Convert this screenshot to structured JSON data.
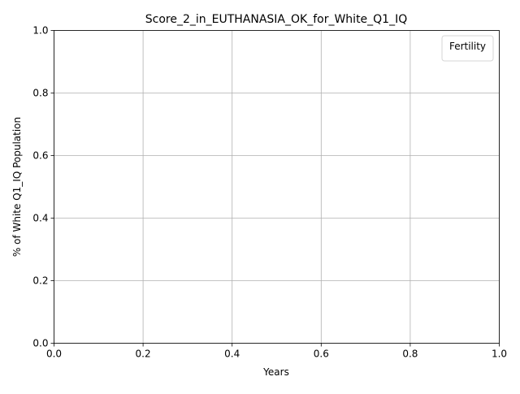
{
  "chart_data": {
    "type": "line",
    "title": "Score_2_in_EUTHANASIA_OK_for_White_Q1_IQ",
    "xlabel": "Years",
    "ylabel": "% of White Q1_IQ Population",
    "xlim": [
      0,
      1
    ],
    "ylim": [
      0,
      1
    ],
    "xticks": [
      0.0,
      0.2,
      0.4,
      0.6,
      0.8,
      1.0
    ],
    "xtick_labels": [
      "0.0",
      "0.2",
      "0.4",
      "0.6",
      "0.8",
      "1.0"
    ],
    "yticks": [
      0.0,
      0.2,
      0.4,
      0.6,
      0.8,
      1.0
    ],
    "ytick_labels": [
      "0.0",
      "0.2",
      "0.4",
      "0.6",
      "0.8",
      "1.0"
    ],
    "grid": true,
    "legend": {
      "title": "Fertility",
      "location": "top-right",
      "entries": []
    },
    "series": []
  }
}
